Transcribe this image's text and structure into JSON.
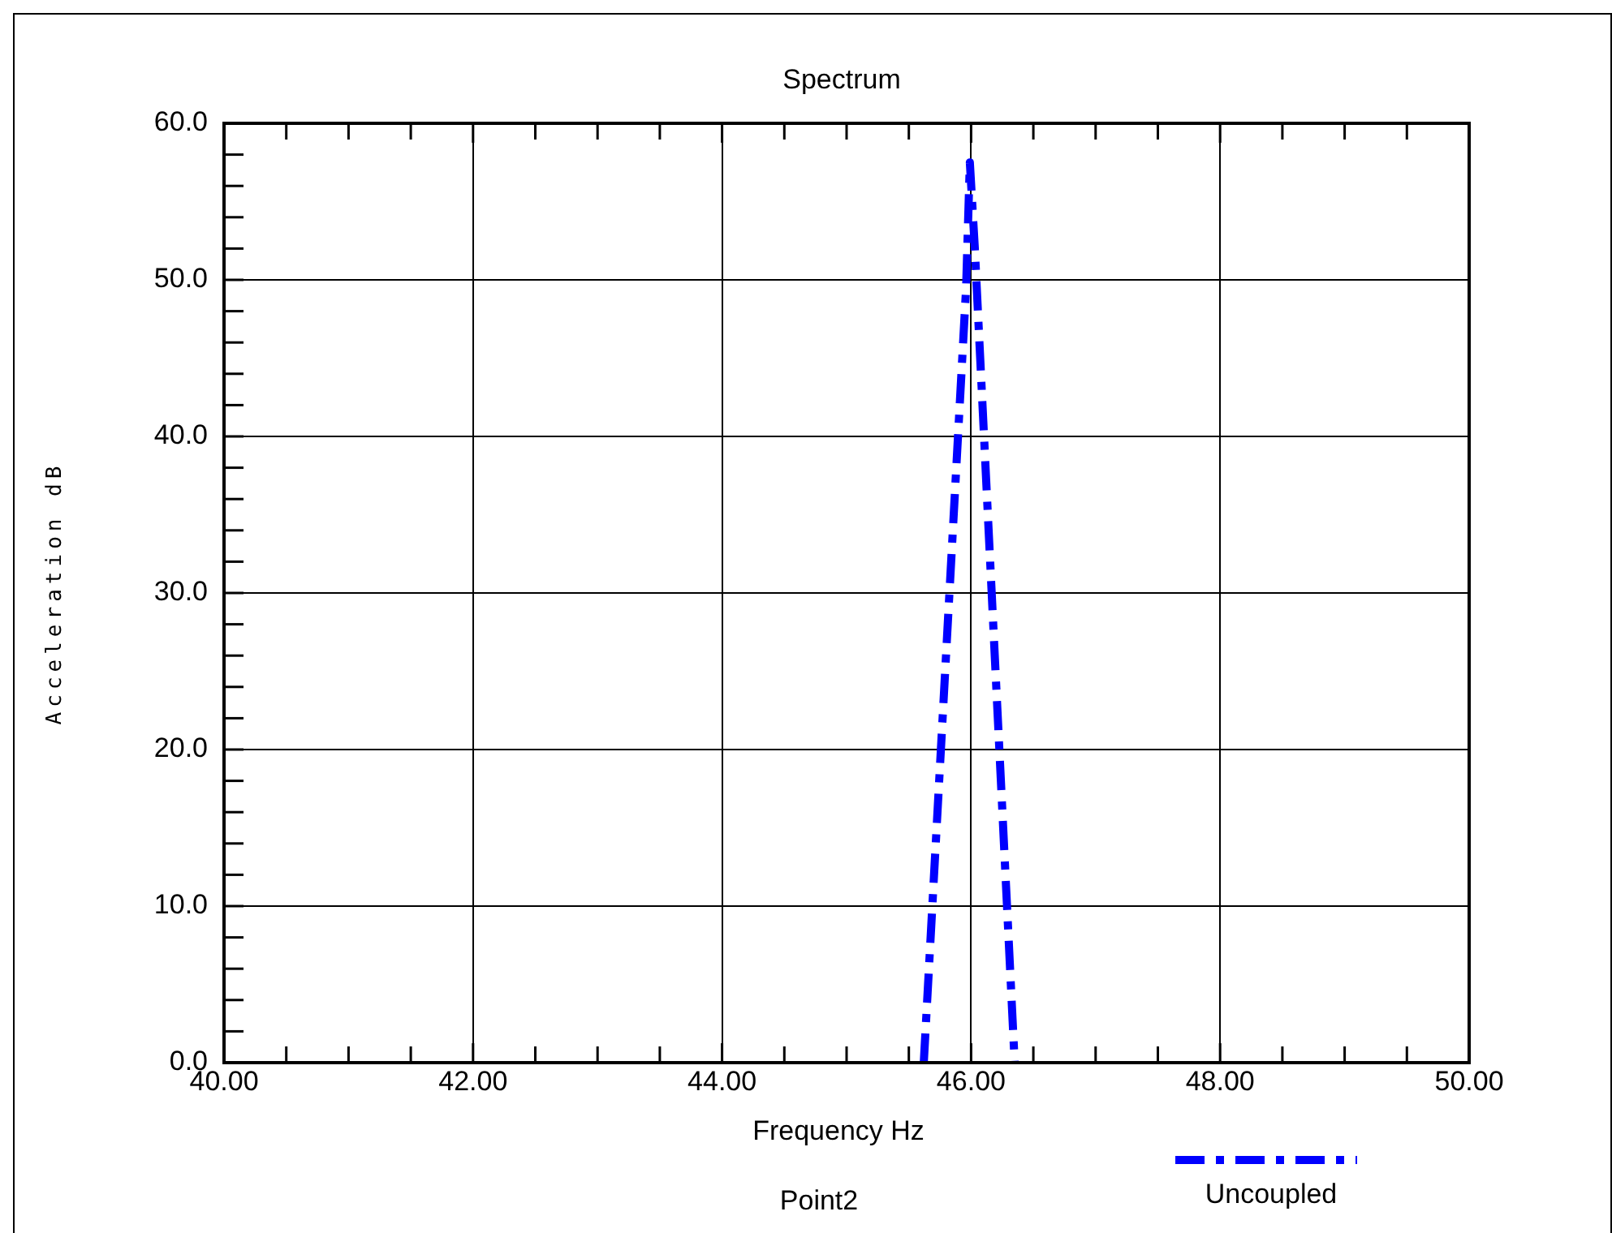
{
  "chart_data": {
    "type": "line",
    "title": "Spectrum",
    "xlabel": "Frequency Hz",
    "ylabel": "Acceleration dB",
    "annotations": [
      "Point2"
    ],
    "xlim": [
      40,
      50
    ],
    "ylim": [
      0,
      60
    ],
    "xticks": [
      {
        "value": 40,
        "label": "40.00"
      },
      {
        "value": 40.5,
        "label": null
      },
      {
        "value": 41,
        "label": null
      },
      {
        "value": 41.5,
        "label": null
      },
      {
        "value": 42,
        "label": "42.00"
      },
      {
        "value": 42.5,
        "label": null
      },
      {
        "value": 43,
        "label": null
      },
      {
        "value": 43.5,
        "label": null
      },
      {
        "value": 44,
        "label": "44.00"
      },
      {
        "value": 44.5,
        "label": null
      },
      {
        "value": 45,
        "label": null
      },
      {
        "value": 45.5,
        "label": null
      },
      {
        "value": 46,
        "label": "46.00"
      },
      {
        "value": 46.5,
        "label": null
      },
      {
        "value": 47,
        "label": null
      },
      {
        "value": 47.5,
        "label": null
      },
      {
        "value": 48,
        "label": "48.00"
      },
      {
        "value": 48.5,
        "label": null
      },
      {
        "value": 49,
        "label": null
      },
      {
        "value": 49.5,
        "label": null
      },
      {
        "value": 50,
        "label": "50.00"
      }
    ],
    "yticks": [
      {
        "value": 0,
        "label": "0.0"
      },
      {
        "value": 2,
        "label": null
      },
      {
        "value": 4,
        "label": null
      },
      {
        "value": 6,
        "label": null
      },
      {
        "value": 8,
        "label": null
      },
      {
        "value": 10,
        "label": "10.0"
      },
      {
        "value": 12,
        "label": null
      },
      {
        "value": 14,
        "label": null
      },
      {
        "value": 16,
        "label": null
      },
      {
        "value": 18,
        "label": null
      },
      {
        "value": 20,
        "label": "20.0"
      },
      {
        "value": 22,
        "label": null
      },
      {
        "value": 24,
        "label": null
      },
      {
        "value": 26,
        "label": null
      },
      {
        "value": 28,
        "label": null
      },
      {
        "value": 30,
        "label": "30.0"
      },
      {
        "value": 32,
        "label": null
      },
      {
        "value": 34,
        "label": null
      },
      {
        "value": 36,
        "label": null
      },
      {
        "value": 38,
        "label": null
      },
      {
        "value": 40,
        "label": "40.0"
      },
      {
        "value": 42,
        "label": null
      },
      {
        "value": 44,
        "label": null
      },
      {
        "value": 46,
        "label": null
      },
      {
        "value": 48,
        "label": null
      },
      {
        "value": 50,
        "label": "50.0"
      },
      {
        "value": 52,
        "label": null
      },
      {
        "value": 54,
        "label": null
      },
      {
        "value": 56,
        "label": null
      },
      {
        "value": 58,
        "label": null
      },
      {
        "value": 60,
        "label": "60.0"
      }
    ],
    "grid": true,
    "legend": "bottom right",
    "marker": "none",
    "line_style": "dashed",
    "series": [
      {
        "name": "Uncoupled",
        "color": "#0000ff",
        "x": [
          45.62,
          45.96,
          45.99,
          46.03,
          46.35
        ],
        "values": [
          0,
          49.5,
          57.5,
          52,
          0
        ]
      }
    ]
  }
}
